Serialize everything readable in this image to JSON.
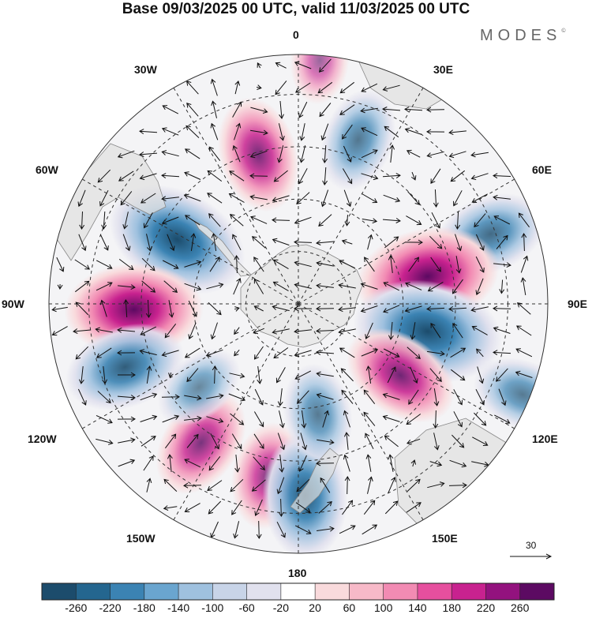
{
  "title": "Base 09/03/2025 00 UTC, valid 11/03/2025 00 UTC",
  "brand": "MODES",
  "brand_mark": "©",
  "map": {
    "projection": "south polar stereographic",
    "longitude_labels": {
      "top": "0",
      "bottom": "180",
      "left": "90W",
      "right": "90E",
      "nw1": "30W",
      "nw2": "60W",
      "ne1": "30E",
      "ne2": "60E",
      "sw1": "120W",
      "sw2": "150W",
      "se1": "120E",
      "se2": "150E"
    },
    "reference_vector_label": "30"
  },
  "colorbar": {
    "labels": [
      "-260",
      "-220",
      "-180",
      "-140",
      "-100",
      "-60",
      "-20",
      "20",
      "60",
      "100",
      "140",
      "180",
      "220",
      "260"
    ],
    "colors": [
      "#1c4c6c",
      "#24668f",
      "#3b83b3",
      "#6aa5cf",
      "#9fc1df",
      "#c8d4e8",
      "#e1e1ee",
      "#ffffff",
      "#f9dadc",
      "#f7b9c8",
      "#f28bb3",
      "#e64f9e",
      "#c8228f",
      "#93127e",
      "#5c0a62"
    ]
  },
  "anomalies": [
    {
      "lon": -62,
      "r": 0.55,
      "value": -260
    },
    {
      "lon": -92,
      "r": 0.66,
      "value": 240
    },
    {
      "lon": -110,
      "r": 0.74,
      "value": -180
    },
    {
      "lon": -145,
      "r": 0.68,
      "value": 150
    },
    {
      "lon": -170,
      "r": 0.7,
      "value": 130
    },
    {
      "lon": 178,
      "r": 0.77,
      "value": -200
    },
    {
      "lon": 170,
      "r": 0.45,
      "value": -110
    },
    {
      "lon": -15,
      "r": 0.62,
      "value": 160
    },
    {
      "lon": 20,
      "r": 0.7,
      "value": -120
    },
    {
      "lon": 70,
      "r": 0.82,
      "value": -150
    },
    {
      "lon": 78,
      "r": 0.53,
      "value": 260
    },
    {
      "lon": 102,
      "r": 0.53,
      "value": -280
    },
    {
      "lon": 125,
      "r": 0.5,
      "value": 170
    },
    {
      "lon": 112,
      "r": 0.97,
      "value": -110
    },
    {
      "lon": -130,
      "r": 0.52,
      "value": -80
    },
    {
      "lon": 5,
      "r": 0.98,
      "value": 60
    }
  ]
}
